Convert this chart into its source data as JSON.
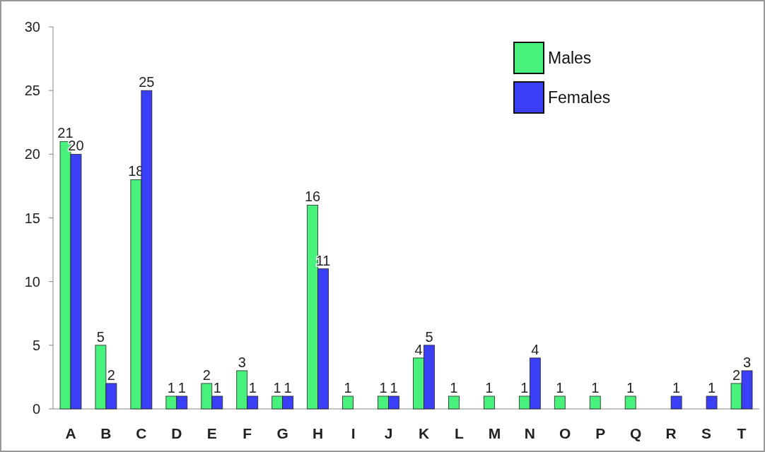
{
  "chart_data": {
    "type": "bar",
    "categories": [
      "A",
      "B",
      "C",
      "D",
      "E",
      "F",
      "G",
      "H",
      "I",
      "J",
      "K",
      "L",
      "M",
      "N",
      "O",
      "P",
      "Q",
      "R",
      "S",
      "T"
    ],
    "series": [
      {
        "name": "Males",
        "color": "#48f07c",
        "values": [
          21,
          5,
          18,
          1,
          2,
          3,
          1,
          16,
          1,
          1,
          4,
          1,
          1,
          1,
          1,
          1,
          1,
          null,
          null,
          2
        ]
      },
      {
        "name": "Females",
        "color": "#3b3ff6",
        "values": [
          20,
          2,
          25,
          1,
          1,
          1,
          1,
          11,
          null,
          1,
          5,
          null,
          null,
          4,
          null,
          null,
          null,
          1,
          1,
          3
        ]
      }
    ],
    "ylim": [
      0,
      30
    ],
    "yticks": [
      0,
      5,
      10,
      15,
      20,
      25,
      30
    ],
    "grid": false,
    "legend": "top right",
    "data_labels": true
  }
}
